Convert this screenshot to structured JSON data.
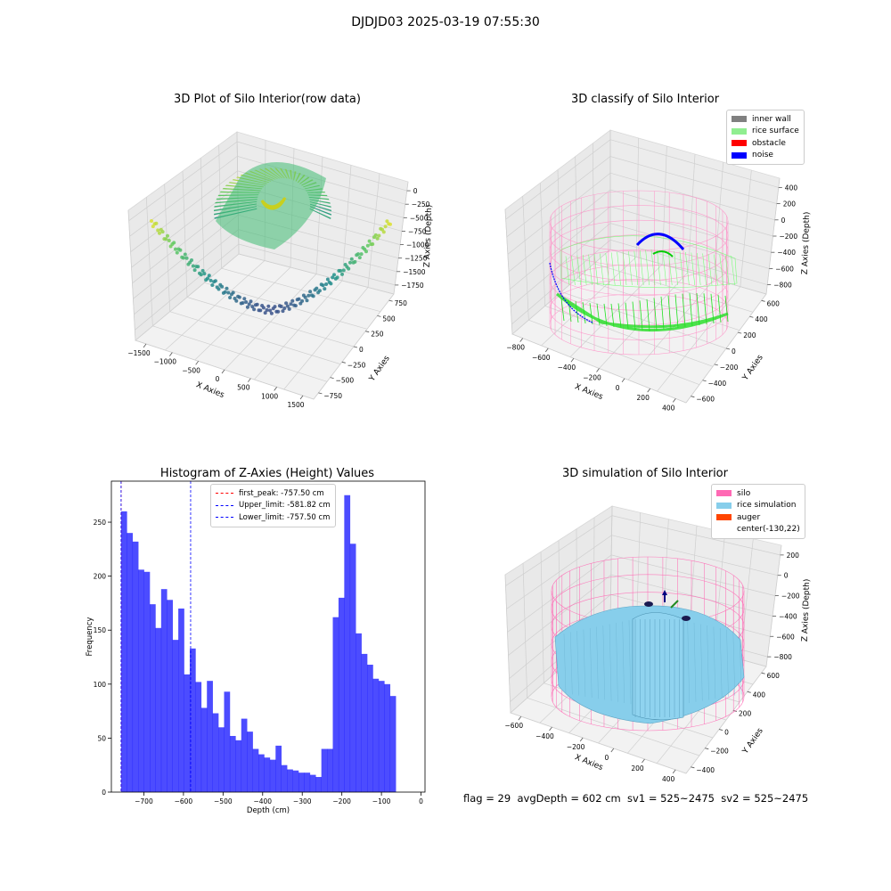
{
  "suptitle": "DJDJD03 2025-03-19 07:55:30",
  "footer": "flag = 29  avgDepth = 602 cm  sv1 = 525~2475  sv2 = 525~2475",
  "chart_data": [
    {
      "type": "scatter",
      "subtype": "3d-scatter",
      "title": "3D Plot of Silo Interior(row data)",
      "xlabel": "X Axies",
      "ylabel": "Y Axies",
      "zlabel": "Z Axies (Depth)",
      "x_ticks": [
        "−1500",
        "−1000",
        "−500",
        "0",
        "500",
        "1000",
        "1500"
      ],
      "y_ticks": [
        "−750",
        "−500",
        "−250",
        "0",
        "250",
        "500",
        "750"
      ],
      "z_ticks": [
        "0",
        "−250",
        "−500",
        "−750",
        "−1000",
        "−1250",
        "−1500",
        "−1750"
      ],
      "colormap": "viridis",
      "grid": true
    },
    {
      "type": "scatter",
      "subtype": "3d-wireframe",
      "title": "3D classify of Silo Interior",
      "xlabel": "X Axies",
      "ylabel": "Y Axies",
      "zlabel": "Z Axies (Depth)",
      "x_ticks": [
        "−800",
        "−600",
        "−400",
        "−200",
        "0",
        "200",
        "400"
      ],
      "y_ticks": [
        "−600",
        "−400",
        "−200",
        "0",
        "200",
        "400",
        "600"
      ],
      "z_ticks": [
        "400",
        "200",
        "0",
        "−200",
        "−400",
        "−600",
        "−800"
      ],
      "legend": [
        {
          "label": "inner wall",
          "color": "#808080"
        },
        {
          "label": "rice surface",
          "color": "#90ee90"
        },
        {
          "label": "obstacle",
          "color": "#ff0000"
        },
        {
          "label": "noise",
          "color": "#0000ff"
        }
      ],
      "legend_position": "top-right",
      "grid": true
    },
    {
      "type": "bar",
      "subtype": "histogram",
      "title": "Histogram of Z-Axies (Height) Values",
      "xlabel": "Depth (cm)",
      "ylabel": "Frequency",
      "xlim": [
        -782,
        10
      ],
      "ylim": [
        0,
        288
      ],
      "x_ticks": [
        -700,
        -600,
        -500,
        -400,
        -300,
        -200,
        -100,
        0
      ],
      "y_ticks": [
        0,
        50,
        100,
        150,
        200,
        250
      ],
      "bar_color": "#0000ff",
      "bin_start": -757.5,
      "bin_width": 14.45,
      "values": [
        260,
        240,
        232,
        206,
        204,
        174,
        152,
        188,
        178,
        141,
        170,
        109,
        133,
        102,
        78,
        103,
        73,
        60,
        93,
        52,
        48,
        68,
        56,
        40,
        35,
        32,
        30,
        43,
        25,
        21,
        20,
        18,
        18,
        16,
        14,
        40,
        40,
        162,
        180,
        275,
        230,
        147,
        128,
        118,
        105,
        103,
        100,
        89
      ],
      "vlines": [
        {
          "label": "first_peak: -757.50 cm",
          "x": -757.5,
          "color": "#ff0000"
        },
        {
          "label": "Upper_limit: -581.82 cm",
          "x": -581.82,
          "color": "#0000ff"
        },
        {
          "label": "Lower_limit: -757.50 cm",
          "x": -757.5,
          "color": "#0000ff"
        }
      ],
      "legend_position": "top-center",
      "grid": false
    },
    {
      "type": "scatter",
      "subtype": "3d-surface",
      "title": "3D simulation of Silo Interior",
      "xlabel": "X Axies",
      "ylabel": "Y Axies",
      "zlabel": "Z Axies (Depth)",
      "x_ticks": [
        "−600",
        "−400",
        "−200",
        "0",
        "200",
        "400"
      ],
      "y_ticks": [
        "−400",
        "−200",
        "0",
        "200",
        "400",
        "600"
      ],
      "z_ticks": [
        "200",
        "0",
        "−200",
        "−400",
        "−600",
        "−800"
      ],
      "legend": [
        {
          "label": "silo",
          "color": "#ff69b4"
        },
        {
          "label": "rice simulation",
          "color": "#87ceeb"
        },
        {
          "label": "auger",
          "color": "#ff4500"
        },
        {
          "label": "center(-130,22)",
          "color": ""
        }
      ],
      "legend_position": "top-right",
      "grid": true
    }
  ]
}
